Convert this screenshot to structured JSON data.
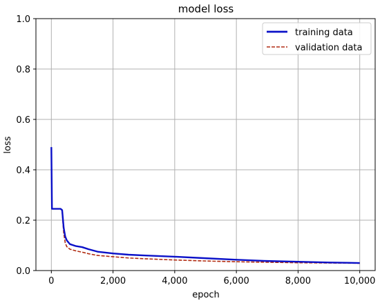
{
  "chart_data": {
    "type": "line",
    "title": "model loss",
    "xlabel": "epoch",
    "ylabel": "loss",
    "xlim": [
      -500,
      10500
    ],
    "ylim": [
      0,
      1.0
    ],
    "xticks": [
      0,
      2000,
      4000,
      6000,
      8000,
      10000
    ],
    "xtick_labels": [
      "0",
      "2,000",
      "4,000",
      "6,000",
      "8,000",
      "10,000"
    ],
    "yticks": [
      0,
      0.2,
      0.4,
      0.6,
      0.8,
      1.0
    ],
    "ytick_labels": [
      "0.0",
      "0.2",
      "0.4",
      "0.6",
      "0.8",
      "1.0"
    ],
    "grid": true,
    "legend_position": "top-right",
    "series": [
      {
        "name": "training data",
        "color": "#0a10c8",
        "style": "solid",
        "x": [
          0,
          20,
          50,
          300,
          350,
          400,
          450,
          500,
          600,
          800,
          1000,
          1200,
          1500,
          2000,
          2500,
          3000,
          4000,
          5000,
          6000,
          7000,
          8000,
          9000,
          10000
        ],
        "y": [
          0.49,
          0.245,
          0.245,
          0.245,
          0.24,
          0.17,
          0.135,
          0.12,
          0.105,
          0.097,
          0.093,
          0.085,
          0.075,
          0.068,
          0.063,
          0.06,
          0.055,
          0.049,
          0.043,
          0.038,
          0.035,
          0.032,
          0.03
        ]
      },
      {
        "name": "validation data",
        "color": "#b02a10",
        "style": "dashed",
        "x": [
          0,
          20,
          50,
          300,
          350,
          400,
          450,
          500,
          600,
          800,
          1000,
          1200,
          1500,
          2000,
          2500,
          3000,
          4000,
          5000,
          6000,
          7000,
          8000,
          9000,
          10000
        ],
        "y": [
          0.47,
          0.245,
          0.245,
          0.245,
          0.235,
          0.15,
          0.11,
          0.095,
          0.085,
          0.078,
          0.073,
          0.067,
          0.06,
          0.055,
          0.05,
          0.047,
          0.042,
          0.038,
          0.035,
          0.033,
          0.031,
          0.03,
          0.029
        ]
      }
    ]
  }
}
